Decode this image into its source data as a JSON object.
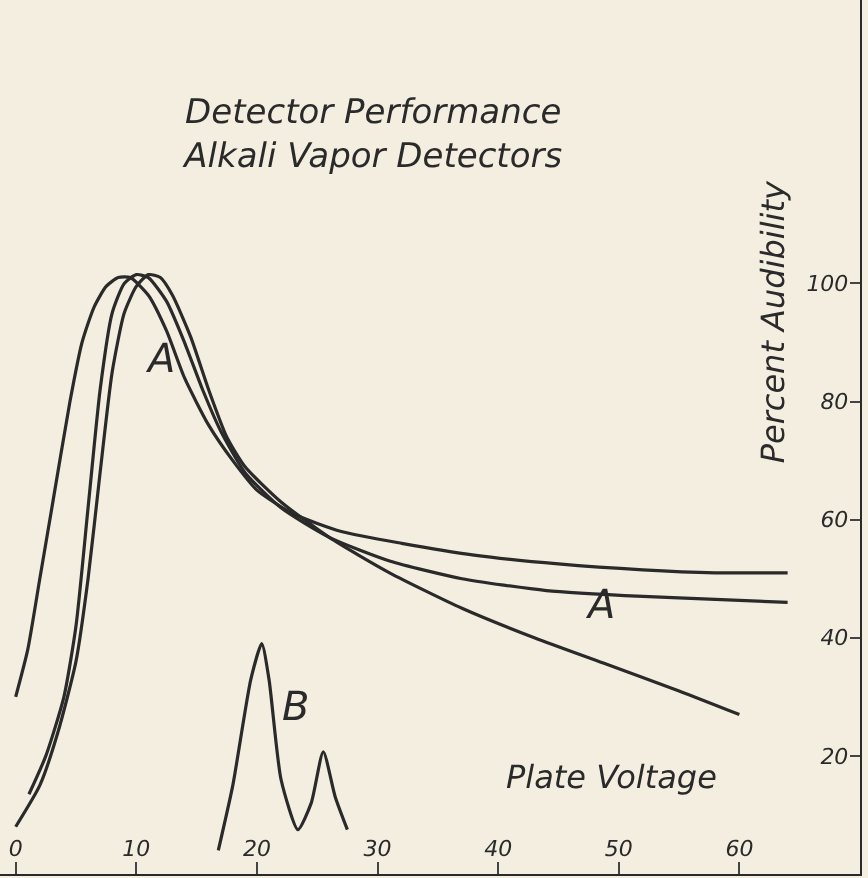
{
  "chart_data": {
    "type": "line",
    "title": "Detector Performance",
    "subtitle": "Alkali Vapor Detectors",
    "xlabel": "Plate Voltage",
    "ylabel": "Percent Audibility",
    "series": [
      {
        "color": "#2a2a2a",
        "x": [
          0,
          1,
          2,
          3,
          4.5,
          5.5,
          6.5,
          7.5,
          8.5,
          9.5,
          11,
          12.5,
          14,
          16,
          18,
          20,
          23,
          27,
          32,
          38,
          45,
          52,
          58,
          64
        ],
        "values": [
          30,
          38,
          50,
          62,
          80,
          90,
          96,
          99.5,
          101,
          101,
          98,
          92,
          84,
          76,
          70,
          65,
          61,
          58,
          56,
          54,
          52.5,
          51.5,
          51,
          51
        ]
      },
      {
        "color": "#2a2a2a",
        "x": [
          1.1,
          2.5,
          4,
          5,
          6,
          7,
          8,
          9,
          10,
          11,
          12.5,
          14,
          15.5,
          17,
          19,
          22,
          26,
          31,
          37,
          44,
          52,
          58,
          64
        ],
        "values": [
          13.5,
          20,
          30,
          42,
          62,
          82,
          95,
          100,
          101.5,
          101,
          97,
          90,
          82,
          75,
          68,
          62,
          57,
          53,
          50,
          48,
          47,
          46.5,
          46
        ]
      },
      {
        "color": "#2a2a2a",
        "x": [
          0,
          2,
          3.5,
          5,
          6,
          7,
          8,
          9,
          10,
          11,
          12,
          13,
          14.5,
          16,
          17.5,
          19,
          22,
          26,
          31,
          37,
          43,
          49,
          55,
          60
        ],
        "values": [
          8,
          15,
          24,
          36,
          50,
          68,
          85,
          95,
          99.5,
          101.5,
          101,
          98,
          91,
          82,
          74,
          69,
          63,
          57,
          51,
          45,
          40,
          35.5,
          31,
          27
        ]
      },
      {
        "color": "#2a2a2a",
        "x": [
          16.8,
          18,
          19.5,
          20.4,
          21,
          22,
          23.4,
          24.5,
          25.5,
          26.5,
          27.5
        ],
        "values": [
          4,
          15,
          33,
          39,
          33,
          16,
          7.5,
          12,
          20.7,
          13,
          7.5
        ]
      }
    ],
    "xlim": [
      -1.3,
      70
    ],
    "ylim": [
      0,
      148
    ],
    "xticks": [
      0,
      10,
      20,
      30,
      40,
      50,
      60
    ],
    "yticks": [
      20,
      40,
      60,
      80,
      100
    ],
    "annotations": [
      "A",
      "A",
      "B"
    ],
    "grid": false,
    "marker": "none",
    "line_style": "solid"
  }
}
